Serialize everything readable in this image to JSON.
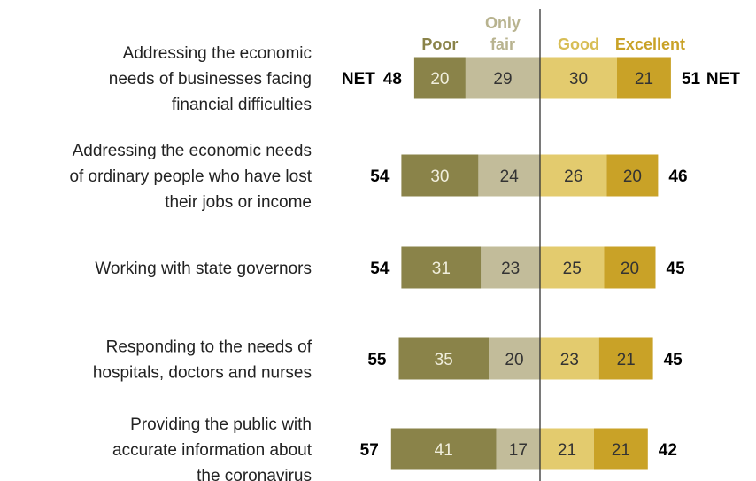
{
  "chart_data": {
    "type": "bar",
    "subtype": "diverging-stacked",
    "colors": {
      "Poor": "#8a8349",
      "Only fair": "#c2bc9a",
      "Good": "#e3cb6e",
      "Excellent": "#c9a227",
      "legend_Poor": "#8a8349",
      "legend_Only fair": "#b8b38f",
      "legend_Good": "#d7bd55",
      "legend_Excellent": "#c9a227"
    },
    "series": [
      {
        "name": "Poor",
        "side": "negative",
        "values": [
          20,
          30,
          31,
          35,
          41
        ]
      },
      {
        "name": "Only fair",
        "side": "negative",
        "values": [
          29,
          24,
          23,
          20,
          17
        ]
      },
      {
        "name": "Good",
        "side": "positive",
        "values": [
          30,
          26,
          25,
          23,
          21
        ]
      },
      {
        "name": "Excellent",
        "side": "positive",
        "values": [
          21,
          20,
          20,
          21,
          21
        ]
      }
    ],
    "categories": [
      [
        "Addressing the economic",
        "needs of businesses facing",
        "financial difficulties"
      ],
      [
        "Addressing the economic needs",
        "of ordinary people who have lost",
        "their jobs or income"
      ],
      [
        "Working with state governors"
      ],
      [
        "Responding to the needs of",
        "hospitals, doctors and nurses"
      ],
      [
        "Providing the public with",
        "accurate information about",
        "the coronavirus"
      ]
    ],
    "net_negative": [
      48,
      54,
      54,
      55,
      57
    ],
    "net_positive": [
      51,
      46,
      45,
      45,
      42
    ],
    "net_label": "NET",
    "legend": {
      "Poor": [
        "Poor"
      ],
      "Only fair": [
        "Only",
        "fair"
      ],
      "Good": [
        "Good"
      ],
      "Excellent": [
        "Excellent"
      ]
    }
  }
}
